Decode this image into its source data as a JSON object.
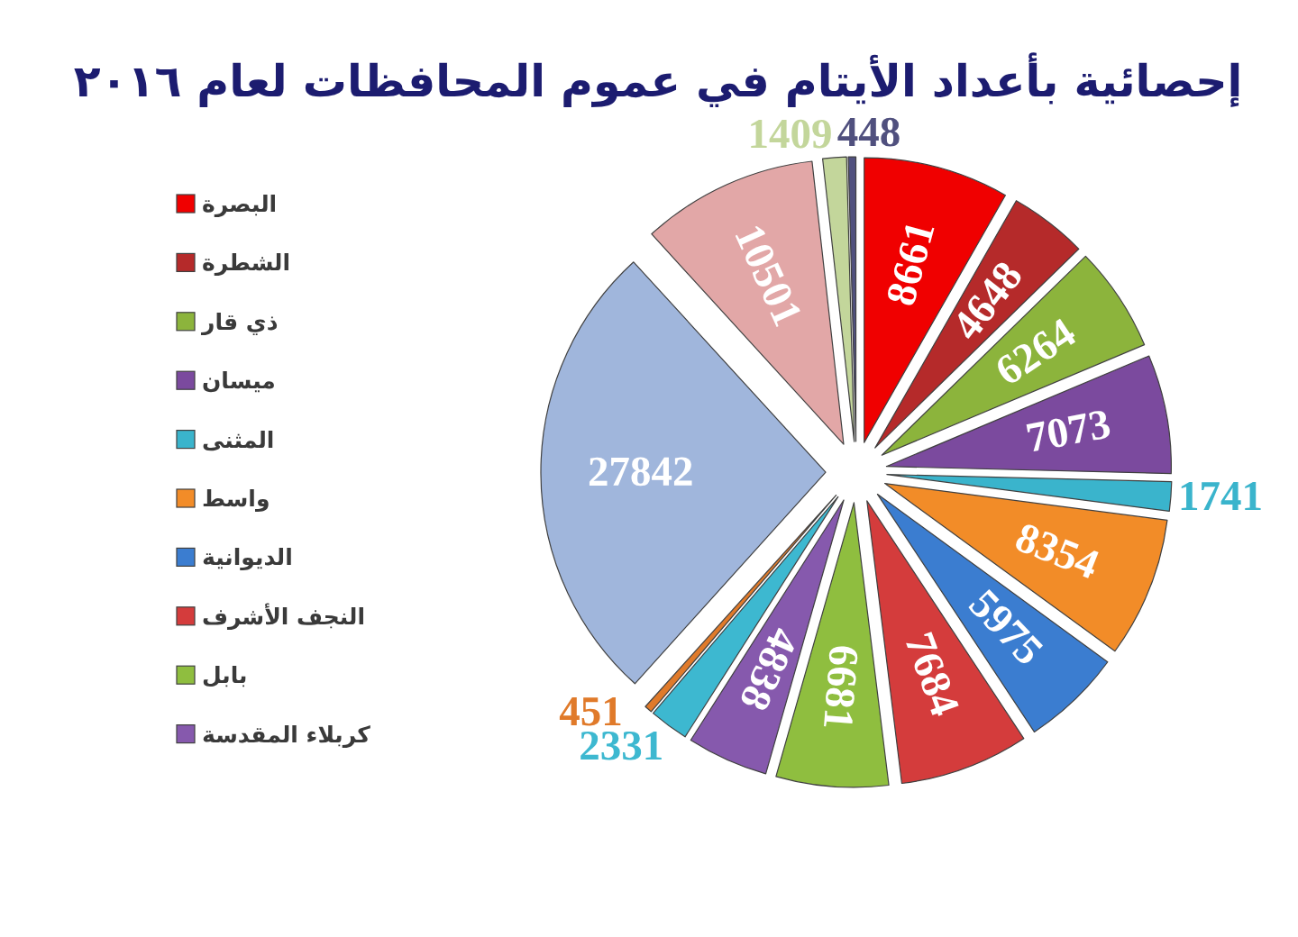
{
  "chart_data": {
    "type": "pie",
    "title": "إحصائية بأعداد الأيتام في عموم المحافظات لعام ٢٠١٦",
    "categories": [
      "البصرة",
      "الشطرة",
      "ذي قار",
      "ميسان",
      "المثنى",
      "واسط",
      "الديوانية",
      "النجف الأشرف",
      "بابل",
      "كربلاء المقدسة",
      null,
      null,
      null,
      null,
      null,
      null
    ],
    "values": [
      8661,
      4648,
      6264,
      7073,
      1741,
      8354,
      5975,
      7684,
      6681,
      4838,
      2331,
      451,
      27842,
      10501,
      1409,
      448
    ],
    "colors": [
      "#f00000",
      "#b52a2a",
      "#8cb43c",
      "#7b4a9e",
      "#3ab4cc",
      "#f28c28",
      "#3b7dd0",
      "#d43c3c",
      "#8fbe3f",
      "#8659ad",
      "#3db8d0",
      "#e07a2a",
      "#a0b6dc",
      "#e2a7a7",
      "#c3d69b",
      "#50507e"
    ],
    "legend": "left",
    "data_labels": true
  }
}
